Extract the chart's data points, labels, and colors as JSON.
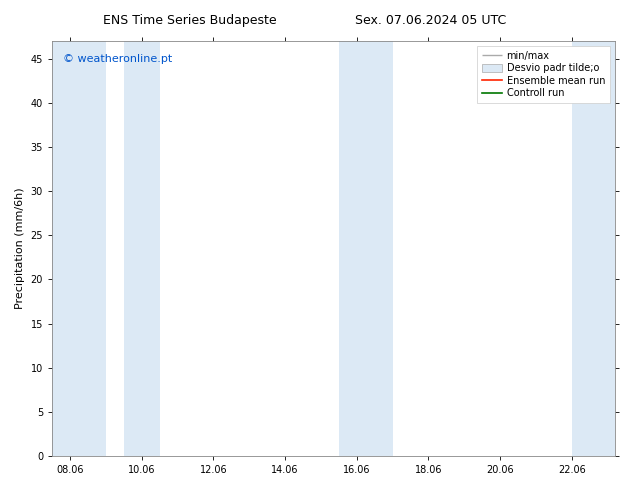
{
  "title_left": "ENS Time Series Budapeste",
  "title_right": "Sex. 07.06.2024 05 UTC",
  "ylabel": "Precipitation (mm/6h)",
  "watermark": "© weatheronline.pt",
  "watermark_color": "#0055cc",
  "xlim_left": 7.5,
  "xlim_right": 23.2,
  "ylim_bottom": 0,
  "ylim_top": 47,
  "yticks": [
    0,
    5,
    10,
    15,
    20,
    25,
    30,
    35,
    40,
    45
  ],
  "xtick_labels": [
    "08.06",
    "10.06",
    "12.06",
    "14.06",
    "16.06",
    "18.06",
    "20.06",
    "22.06"
  ],
  "xtick_positions": [
    8,
    10,
    12,
    14,
    16,
    18,
    20,
    22
  ],
  "background_color": "#ffffff",
  "plot_bg_color": "#ffffff",
  "shaded_regions": [
    [
      7.5,
      9.0
    ],
    [
      9.5,
      10.5
    ],
    [
      15.5,
      17.0
    ],
    [
      22.0,
      23.2
    ]
  ],
  "shade_color": "#dce9f5",
  "legend_labels": [
    "min/max",
    "Desvio padr tilde;o",
    "Ensemble mean run",
    "Controll run"
  ],
  "title_fontsize": 9,
  "axis_label_fontsize": 8,
  "tick_fontsize": 7,
  "watermark_fontsize": 8,
  "legend_fontsize": 7
}
